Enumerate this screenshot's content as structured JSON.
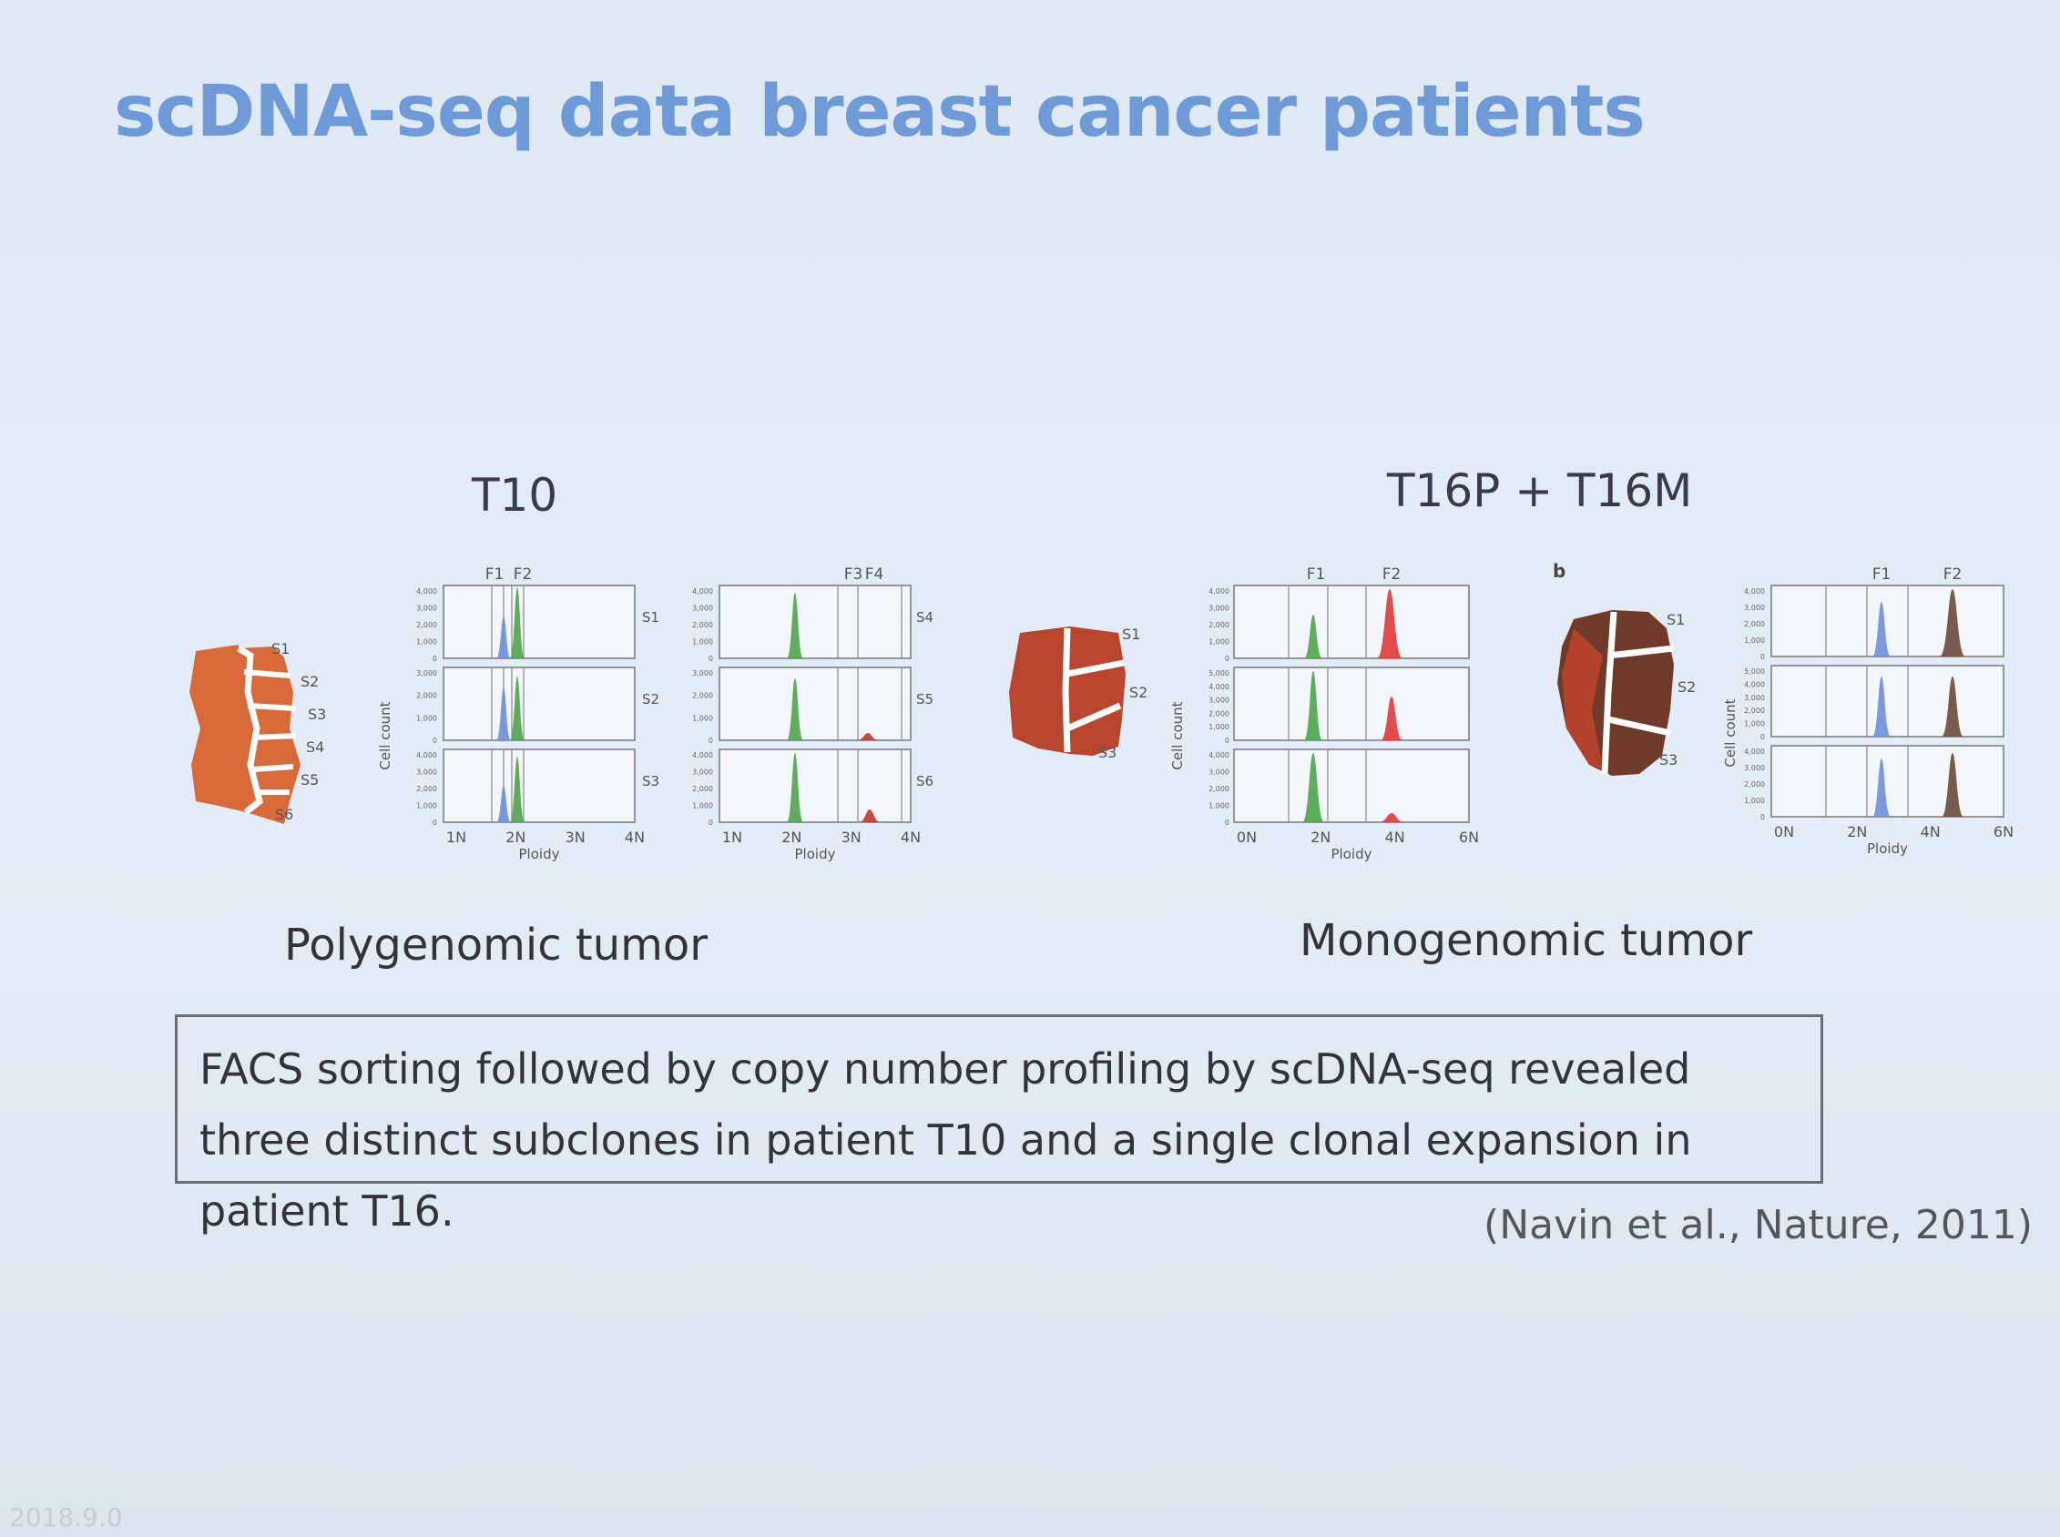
{
  "slide": {
    "title": "scDNA-seq data breast cancer patients",
    "left_heading": "T10",
    "right_heading": "T16P + T16M",
    "left_caption": "Polygenomic tumor",
    "right_caption": "Monogenomic tumor",
    "summary": "FACS sorting followed by copy number profiling by scDNA-seq revealed three distinct subclones in patient T10 and a single clonal expansion in patient T16.",
    "citation": "(Navin et al., Nature, 2011)",
    "panel_b_label": "b",
    "bottom_mark": "2018.9.0"
  },
  "chart_data": [
    {
      "type": "area",
      "panel": "T10-left",
      "xlabel": "Ploidy",
      "ylabel": "Cell count",
      "x_ticks": [
        "1N",
        "2N",
        "3N",
        "4N"
      ],
      "gates": [
        "F1",
        "F2"
      ],
      "rows": [
        {
          "sector": "S1",
          "y_ticks": [
            "4,000",
            "3,000",
            "2,000",
            "1,000",
            "0"
          ]
        },
        {
          "sector": "S2",
          "y_ticks": [
            "3,000",
            "2,000",
            "1,000",
            "0"
          ]
        },
        {
          "sector": "S3",
          "y_ticks": [
            "4,000",
            "3,000",
            "2,000",
            "1,000",
            "0"
          ]
        }
      ],
      "colors": {
        "F1": "#6f8fdc",
        "F2": "#4fa44a"
      }
    },
    {
      "type": "area",
      "panel": "T10-right",
      "xlabel": "Ploidy",
      "x_ticks": [
        "1N",
        "2N",
        "3N",
        "4N"
      ],
      "gates": [
        "F3",
        "F4"
      ],
      "rows": [
        {
          "sector": "S4",
          "y_ticks": [
            "4,000",
            "3,000",
            "2,000",
            "1,000",
            "0"
          ]
        },
        {
          "sector": "S5",
          "y_ticks": [
            "3,000",
            "2,000",
            "1,000",
            "0"
          ]
        },
        {
          "sector": "S6",
          "y_ticks": [
            "4,000",
            "3,000",
            "2,000",
            "1,000",
            "0"
          ]
        }
      ],
      "colors": {
        "F3": "#4fa44a",
        "F4": "#c0392b"
      }
    },
    {
      "type": "area",
      "panel": "T16P",
      "xlabel": "Ploidy",
      "ylabel": "Cell count",
      "x_ticks": [
        "0N",
        "2N",
        "4N",
        "6N"
      ],
      "gates": [
        "F1",
        "F2"
      ],
      "rows": [
        {
          "sector": "S1",
          "y_ticks": [
            "4,000",
            "3,000",
            "2,000",
            "1,000",
            "0"
          ]
        },
        {
          "sector": "S2",
          "y_ticks": [
            "5,000",
            "4,000",
            "3,000",
            "2,000",
            "1,000",
            "0"
          ]
        },
        {
          "sector": "S3",
          "y_ticks": [
            "4,000",
            "3,000",
            "2,000",
            "1,000",
            "0"
          ]
        }
      ],
      "colors": {
        "F1": "#4fa44a",
        "F2": "#e03a3a"
      }
    },
    {
      "type": "area",
      "panel": "T16M",
      "xlabel": "Ploidy",
      "ylabel": "Cell count",
      "x_ticks": [
        "0N",
        "2N",
        "4N",
        "6N"
      ],
      "gates": [
        "F1",
        "F2"
      ],
      "rows": [
        {
          "sector": "S1",
          "y_ticks": [
            "4,000",
            "3,000",
            "2,000",
            "1,000",
            "0"
          ]
        },
        {
          "sector": "S2",
          "y_ticks": [
            "5,000",
            "4,000",
            "3,000",
            "2,000",
            "1,000",
            "0"
          ]
        },
        {
          "sector": "S3",
          "y_ticks": [
            "4,000",
            "3,000",
            "2,000",
            "1,000",
            "0"
          ]
        }
      ],
      "colors": {
        "F1": "#6f8fdc",
        "F2": "#6b4a3a"
      }
    }
  ]
}
